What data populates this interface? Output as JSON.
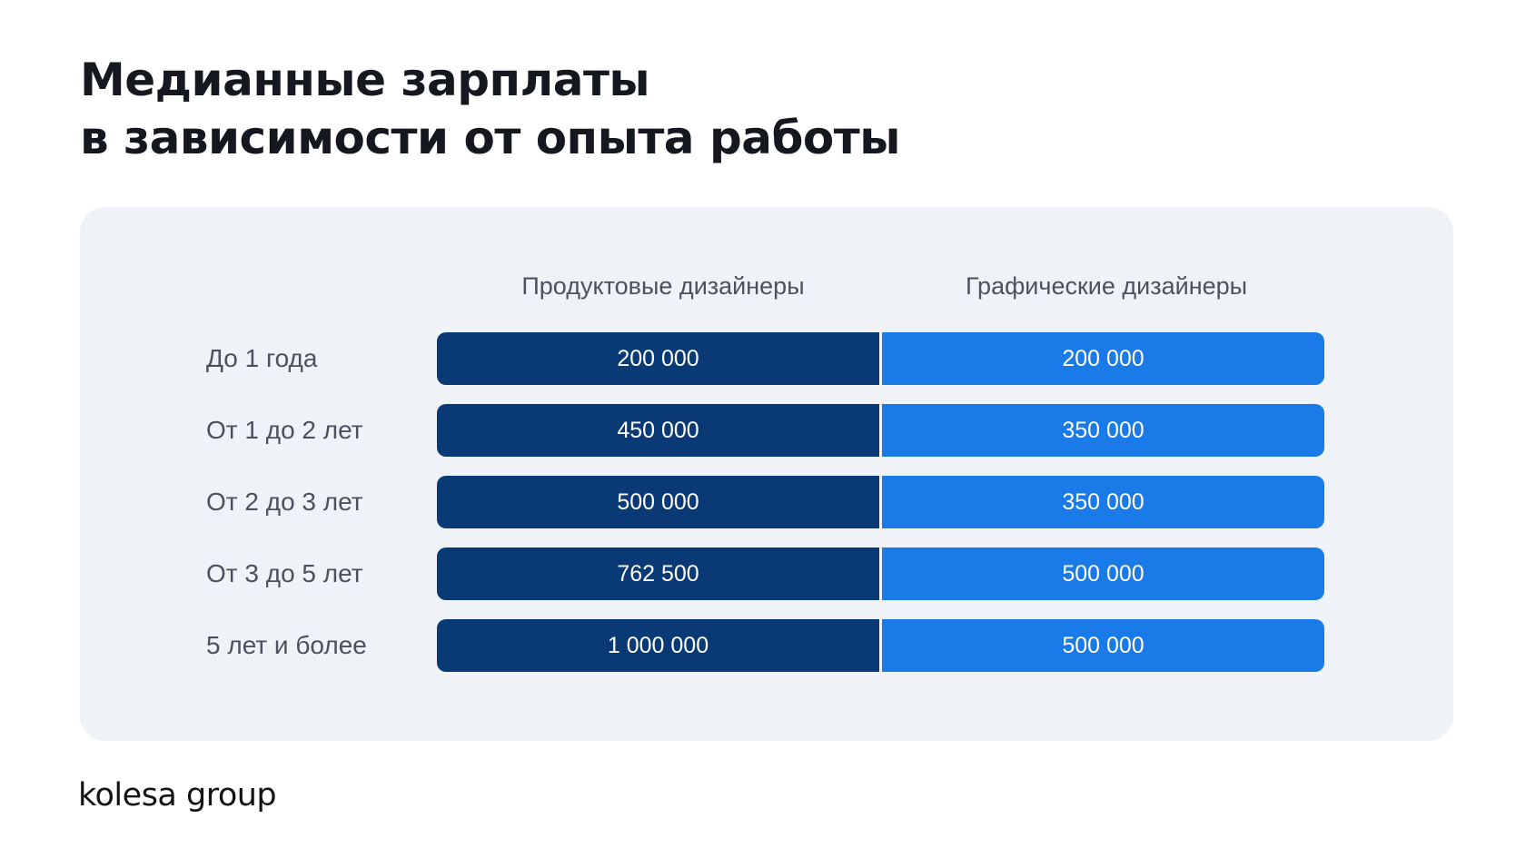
{
  "title": {
    "line1": "Медианные зарплаты",
    "line2": "в зависимости от опыта работы"
  },
  "chart_data": {
    "type": "table",
    "title": "Медианные зарплаты в зависимости от опыта работы",
    "columns": [
      "Продуктовые дизайнеры",
      "Графические дизайнеры"
    ],
    "rows": [
      {
        "label": "До 1 года",
        "values": [
          "200 000",
          "200 000"
        ]
      },
      {
        "label": "От 1 до 2 лет",
        "values": [
          "450 000",
          "350 000"
        ]
      },
      {
        "label": "От 2 до 3 лет",
        "values": [
          "500 000",
          "350 000"
        ]
      },
      {
        "label": "От 3 до 5 лет",
        "values": [
          "762 500",
          "500 000"
        ]
      },
      {
        "label": "5 лет и более",
        "values": [
          "1 000 000",
          "500 000"
        ]
      }
    ],
    "series": [
      {
        "name": "Продуктовые дизайнеры",
        "values": [
          200000,
          450000,
          500000,
          762500,
          1000000
        ],
        "color": "#0a3a75"
      },
      {
        "name": "Графические дизайнеры",
        "values": [
          200000,
          350000,
          350000,
          500000,
          500000
        ],
        "color": "#1a7ae8"
      }
    ]
  },
  "footer": {
    "logo_text": "kolesa group"
  }
}
